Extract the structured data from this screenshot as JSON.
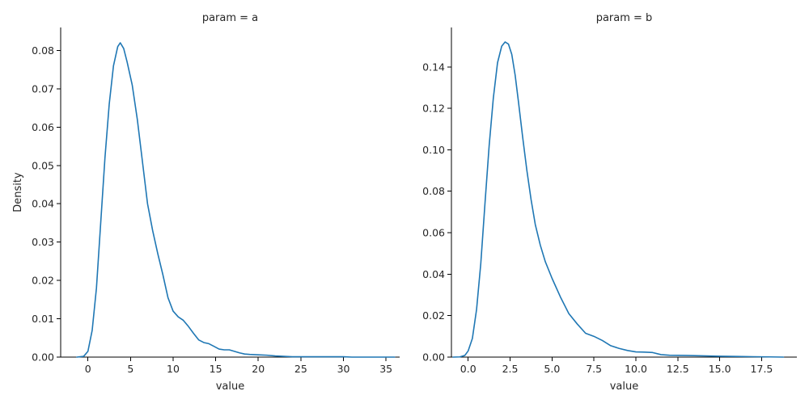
{
  "figure": {
    "ylabel": "Density",
    "line_color": "#1f77b4"
  },
  "chart_data": [
    {
      "type": "line",
      "kind": "kde",
      "title": "param = a",
      "xlabel": "value",
      "ylabel": "Density",
      "xlim": [
        -3.2,
        36.6
      ],
      "ylim": [
        0,
        0.086
      ],
      "xticks": [
        0,
        5,
        10,
        15,
        20,
        25,
        30,
        35
      ],
      "xtick_labels": [
        "0",
        "5",
        "10",
        "15",
        "20",
        "25",
        "30",
        "35"
      ],
      "yticks": [
        0.0,
        0.01,
        0.02,
        0.03,
        0.04,
        0.05,
        0.06,
        0.07,
        0.08
      ],
      "ytick_labels": [
        "0.00",
        "0.01",
        "0.02",
        "0.03",
        "0.04",
        "0.05",
        "0.06",
        "0.07",
        "0.08"
      ],
      "grid": false,
      "series": [
        {
          "x": [
            -1.3,
            -0.5,
            0,
            0.5,
            1,
            1.5,
            2,
            2.5,
            3,
            3.5,
            3.8,
            4.2,
            4.6,
            5.2,
            5.8,
            6.4,
            7,
            7.6,
            8.2,
            8.8,
            9.4,
            10,
            10.6,
            11.2,
            11.8,
            12.4,
            13,
            13.6,
            14.2,
            14.8,
            15.4,
            16,
            16.6,
            17.2,
            17.8,
            18.4,
            19,
            20,
            21,
            22,
            23,
            24,
            25,
            26,
            27,
            28,
            29,
            30,
            31,
            32,
            33,
            34,
            35,
            36
          ],
          "y": [
            0.0,
            0.0002,
            0.0015,
            0.007,
            0.018,
            0.035,
            0.052,
            0.066,
            0.076,
            0.081,
            0.082,
            0.0805,
            0.077,
            0.071,
            0.062,
            0.051,
            0.04,
            0.033,
            0.027,
            0.0215,
            0.0155,
            0.012,
            0.0105,
            0.0096,
            0.008,
            0.0062,
            0.0045,
            0.0038,
            0.0035,
            0.0028,
            0.0021,
            0.0019,
            0.0019,
            0.0015,
            0.0011,
            0.0008,
            0.0007,
            0.0006,
            0.0005,
            0.0003,
            0.0002,
            0.0001,
            0.0001,
            0.0001,
            0.0001,
            0.0001,
            0.0001,
            0.0001,
            0.0,
            0.0,
            0.0,
            0.0,
            0.0,
            0.0
          ]
        }
      ]
    },
    {
      "type": "line",
      "kind": "kde",
      "title": "param = b",
      "xlabel": "value",
      "ylabel": "",
      "xlim": [
        -1.0,
        19.6
      ],
      "ylim": [
        0,
        0.159
      ],
      "xticks": [
        0.0,
        2.5,
        5.0,
        7.5,
        10.0,
        12.5,
        15.0,
        17.5
      ],
      "xtick_labels": [
        "0.0",
        "2.5",
        "5.0",
        "7.5",
        "10.0",
        "12.5",
        "15.0",
        "17.5"
      ],
      "yticks": [
        0.0,
        0.02,
        0.04,
        0.06,
        0.08,
        0.1,
        0.12,
        0.14
      ],
      "ytick_labels": [
        "0.00",
        "0.02",
        "0.04",
        "0.06",
        "0.08",
        "0.10",
        "0.12",
        "0.14"
      ],
      "grid": false,
      "series": [
        {
          "x": [
            -0.9,
            -0.5,
            -0.2,
            0,
            0.25,
            0.5,
            0.75,
            1,
            1.25,
            1.5,
            1.75,
            2,
            2.2,
            2.4,
            2.6,
            2.8,
            3,
            3.25,
            3.5,
            3.75,
            4,
            4.3,
            4.6,
            5,
            5.5,
            6,
            6.5,
            7,
            7.5,
            8,
            8.5,
            9,
            9.5,
            10,
            10.5,
            11,
            11.5,
            12,
            13,
            14,
            15,
            16,
            17,
            18,
            18.8
          ],
          "y": [
            0.0,
            0.0001,
            0.0008,
            0.003,
            0.009,
            0.023,
            0.045,
            0.074,
            0.102,
            0.125,
            0.142,
            0.15,
            0.152,
            0.151,
            0.146,
            0.136,
            0.123,
            0.106,
            0.09,
            0.076,
            0.064,
            0.054,
            0.046,
            0.038,
            0.029,
            0.021,
            0.016,
            0.0115,
            0.01,
            0.008,
            0.0055,
            0.0042,
            0.0032,
            0.0025,
            0.0024,
            0.0022,
            0.0012,
            0.0009,
            0.0008,
            0.0006,
            0.0004,
            0.0003,
            0.0002,
            0.0001,
            0.0
          ]
        }
      ]
    }
  ]
}
